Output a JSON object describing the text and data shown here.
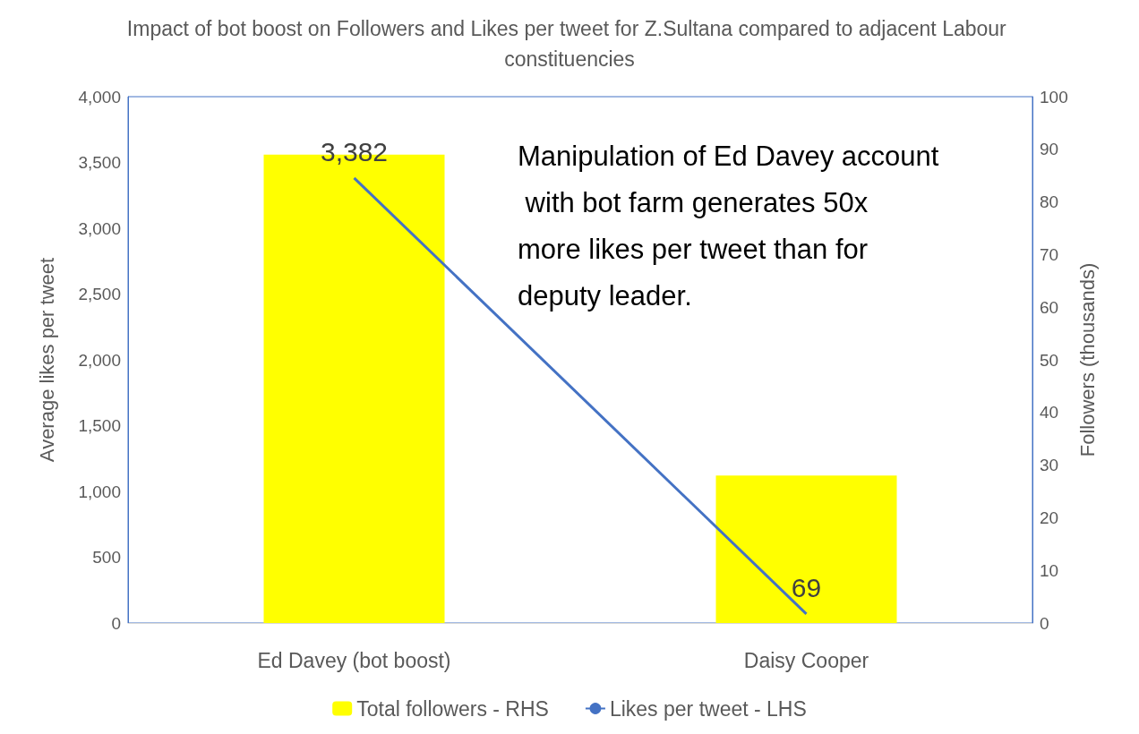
{
  "chart_data": {
    "type": "bar",
    "title": "Impact of bot boost on Followers and Likes per tweet for Z.Sultana compared to adjacent Labour constituencies",
    "categories": [
      "Ed Davey (bot boost)",
      "Daisy Cooper"
    ],
    "ylabel": "Average likes per tweet",
    "y2label": "Followers (thousands)",
    "series": [
      {
        "name": "Total followers - RHS",
        "color": "#ffff00",
        "axis": "y2",
        "values": [
          89,
          28
        ]
      },
      {
        "name": "Likes per tweet - LHS",
        "type": "line",
        "color": "#4472c4",
        "axis": "y",
        "values": [
          3382,
          69
        ],
        "value_labels": [
          "3,382",
          "69"
        ]
      }
    ],
    "ylim": [
      0,
      4000
    ],
    "yticks": [
      0,
      {
        "value": 500,
        "label": "500"
      },
      {
        "value": 1000,
        "label": "1,000"
      },
      {
        "value": 1500,
        "label": "1,500"
      },
      {
        "value": 2000,
        "label": "2,000"
      },
      {
        "value": 2500,
        "label": "2,500"
      },
      {
        "value": 3000,
        "label": "3,000"
      },
      {
        "value": 3500,
        "label": "3,500"
      },
      {
        "value": 4000,
        "label": "4,000"
      }
    ],
    "y2lim": [
      0,
      100
    ],
    "y2ticks": [
      0,
      10,
      20,
      30,
      40,
      50,
      60,
      70,
      80,
      90,
      100
    ],
    "annotations": [
      "Manipulation of Ed Davey account with bot farm generates 50x more likes per tweet than for deputy leader."
    ],
    "legend": "bottom",
    "grid": false,
    "marker": "none",
    "line_style": "solid"
  }
}
